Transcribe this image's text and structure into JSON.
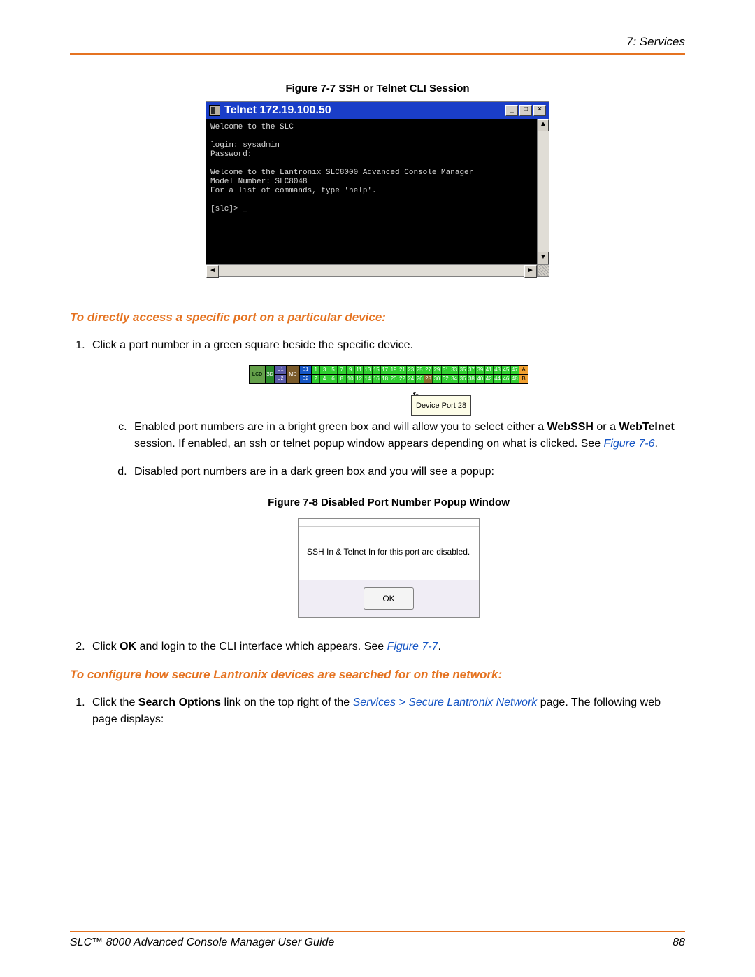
{
  "header": {
    "section": "7: Services"
  },
  "figures": {
    "f77": "Figure 7-7  SSH or Telnet CLI Session",
    "f78": "Figure 7-8  Disabled Port Number Popup Window"
  },
  "telnet": {
    "title": "Telnet 172.19.100.50",
    "min": "_",
    "max": "□",
    "close": "×",
    "body": "Welcome to the SLC\n\nlogin: sysadmin\nPassword:\n\nWelcome to the Lantronix SLC8000 Advanced Console Manager\nModel Number: SLC8048\nFor a list of commands, type 'help'.\n\n[slc]> _",
    "up": "▲",
    "down": "▼",
    "left": "◄",
    "right": "►"
  },
  "headings": {
    "direct": "To directly access a specific port on a particular device:",
    "configure": "To configure how secure Lantronix devices are searched for on the network:"
  },
  "steps": {
    "s1": "Click a port number in a green square beside the specific device.",
    "c_pre": "Enabled port numbers are in a bright green box and will allow you to select either a ",
    "c_b1": "WebSSH",
    "c_mid1": " or a ",
    "c_b2": "WebTelnet",
    "c_mid2": " session.  If enabled, an ssh or telnet popup window appears depending on what is clicked.  See ",
    "c_link": "Figure 7-6",
    "c_end": ".",
    "d": "Disabled port numbers are in a dark green box and you will see a popup:",
    "s2_pre": "Click ",
    "s2_b": "OK",
    "s2_mid": " and login to the CLI interface which appears.   See ",
    "s2_link": "Figure 7-7",
    "s2_end": ".",
    "conf_pre": "Click the ",
    "conf_b": "Search Options",
    "conf_mid": " link on the top right of the ",
    "conf_link": "Services > Secure Lantronix Network",
    "conf_end": " page. The following web page displays:"
  },
  "ports": {
    "lcd": "LCD",
    "sd": "SD",
    "u1": "U1",
    "u2": "U2",
    "md": "MD",
    "e1": "E1",
    "e2": "E2",
    "a": "A",
    "b": "B",
    "row1": [
      "1",
      "3",
      "5",
      "7",
      "9",
      "11",
      "13",
      "15",
      "17",
      "19",
      "21",
      "23",
      "25",
      "27",
      "29",
      "31",
      "33",
      "35",
      "37",
      "39",
      "41",
      "43",
      "45",
      "47"
    ],
    "row2": [
      "2",
      "4",
      "6",
      "8",
      "10",
      "12",
      "14",
      "16",
      "18",
      "20",
      "22",
      "24",
      "26",
      "28",
      "30",
      "32",
      "34",
      "36",
      "38",
      "40",
      "42",
      "44",
      "46",
      "48"
    ],
    "tooltip": "Device Port 28"
  },
  "popup": {
    "msg": "SSH In & Telnet In for this port are disabled.",
    "ok": "OK"
  },
  "footer": {
    "title": "SLC™ 8000 Advanced Console Manager User Guide",
    "page": "88"
  },
  "colors": {
    "orange": "#e57321",
    "link": "#1555c4"
  }
}
